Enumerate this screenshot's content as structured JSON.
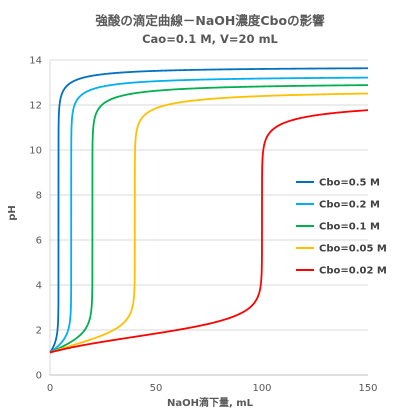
{
  "chart_data": {
    "type": "line",
    "title": "強酸の滴定曲線－NaOH濃度Cboの影響",
    "subtitle": "Cao=0.1 M, V=20 mL",
    "xlabel": "NaOH滴下量, mL",
    "ylabel": "pH",
    "xlim": [
      0,
      150
    ],
    "ylim": [
      0,
      14
    ],
    "xticks": [
      0,
      50,
      100,
      150
    ],
    "yticks": [
      0,
      2,
      4,
      6,
      8,
      10,
      12,
      14
    ],
    "grid": "horizontal",
    "legend_position": "right",
    "series": [
      {
        "name": "Cbo=0.5 M",
        "color": "#0070c0",
        "cbo": 0.5,
        "x": [
          0,
          1,
          2,
          3,
          3.6,
          3.9,
          4,
          4.1,
          4.4,
          5,
          6,
          8,
          12,
          20,
          35,
          60,
          100,
          150
        ],
        "y": [
          1.0,
          1.13,
          1.31,
          1.59,
          1.92,
          2.3,
          7.0,
          11.68,
          12.25,
          12.6,
          12.81,
          13.02,
          13.22,
          13.38,
          13.5,
          13.58,
          13.63,
          13.66
        ]
      },
      {
        "name": "Cbo=0.2 M",
        "color": "#00b0f0",
        "cbo": 0.2,
        "x": [
          0,
          2,
          4,
          6,
          8,
          9,
          9.5,
          10,
          10.5,
          11,
          12,
          14,
          18,
          25,
          40,
          60,
          100,
          150
        ],
        "y": [
          1.0,
          1.1,
          1.21,
          1.36,
          1.57,
          1.74,
          1.93,
          7.0,
          11.51,
          11.81,
          12.1,
          12.37,
          12.6,
          12.77,
          12.93,
          13.02,
          13.1,
          13.15
        ]
      },
      {
        "name": "Cbo=0.1 M",
        "color": "#00b050",
        "cbo": 0.1,
        "x": [
          0,
          4,
          8,
          12,
          16,
          18,
          19,
          20,
          21,
          22,
          24,
          28,
          35,
          50,
          70,
          100,
          150
        ],
        "y": [
          1.0,
          1.12,
          1.25,
          1.43,
          1.75,
          1.98,
          2.3,
          7.0,
          11.2,
          11.48,
          11.75,
          12.01,
          12.19,
          12.37,
          12.48,
          12.56,
          12.63
        ]
      },
      {
        "name": "Cbo=0.05 M",
        "color": "#ffc000",
        "cbo": 0.05,
        "x": [
          0,
          5,
          10,
          15,
          20,
          25,
          30,
          35,
          38,
          39,
          40,
          41,
          42,
          44,
          48,
          55,
          70,
          90,
          120,
          150
        ],
        "y": [
          1.0,
          1.13,
          1.25,
          1.37,
          1.48,
          1.6,
          1.74,
          1.97,
          2.26,
          2.45,
          7.0,
          10.89,
          11.11,
          11.29,
          11.48,
          11.66,
          11.84,
          11.95,
          12.04,
          12.1
        ]
      },
      {
        "name": "Cbo=0.02 M",
        "color": "#ff0000",
        "cbo": 0.02,
        "x": [
          0,
          10,
          20,
          30,
          40,
          50,
          60,
          70,
          80,
          90,
          95,
          98,
          99,
          100,
          101,
          102,
          105,
          110,
          120,
          135,
          150
        ],
        "y": [
          1.0,
          1.18,
          1.3,
          1.4,
          1.48,
          1.57,
          1.66,
          1.78,
          1.95,
          2.26,
          2.57,
          3.0,
          3.35,
          7.0,
          10.34,
          10.46,
          10.83,
          11.09,
          11.33,
          11.51,
          11.61
        ]
      }
    ]
  }
}
